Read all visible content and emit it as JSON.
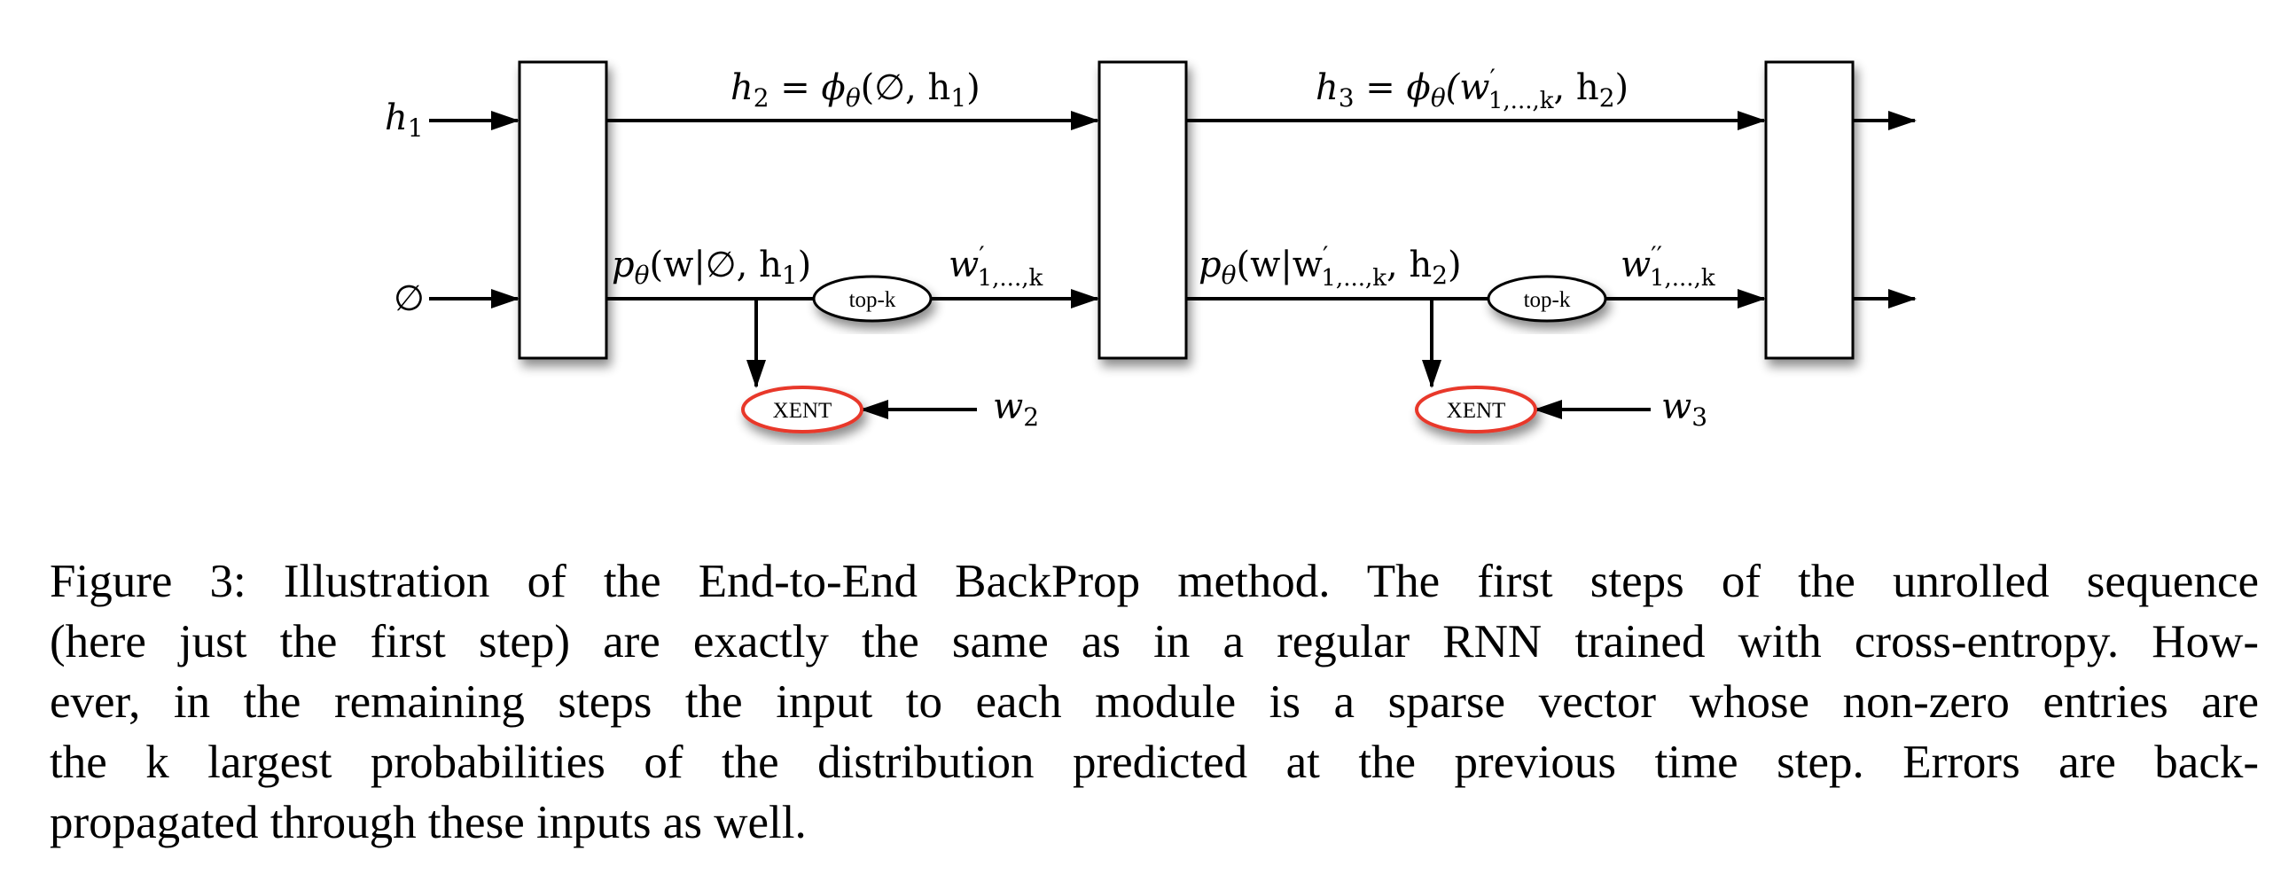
{
  "diagram": {
    "inputs": {
      "h1_base": "h",
      "h1_sub": "1",
      "empty_set": "∅"
    },
    "top_labels": {
      "h2_eq": {
        "lhs": "h",
        "lhs_sub": "2",
        "equals": " = ",
        "phi": "ϕ",
        "theta": "θ",
        "args": "(∅, h",
        "args_sub": "1",
        "close": ")"
      },
      "h3_eq": {
        "lhs": "h",
        "lhs_sub": "3",
        "equals": " = ",
        "phi": "ϕ",
        "theta": "θ",
        "open": "(w",
        "prime": "′",
        "wsub": "1,...,k",
        "comma": ", h",
        "hsub": "2",
        "close": ")"
      }
    },
    "bottom_labels": {
      "p1": {
        "p": "p",
        "theta": "θ",
        "body": "(w|∅, h",
        "hsub": "1",
        "close": ")"
      },
      "w_prime": {
        "w": "w",
        "prime": "′",
        "sub": "1,...,k"
      },
      "p2": {
        "p": "p",
        "theta": "θ",
        "body": "(w|w",
        "prime": "′",
        "wsub": "1,...,k",
        "comma": ", h",
        "hsub": "2",
        "close": ")"
      },
      "w_dprime": {
        "w": "w",
        "prime": "′′",
        "sub": "1,...,k"
      }
    },
    "nodes": {
      "topk_1": "top-k",
      "topk_2": "top-k",
      "xent_1": "XENT",
      "xent_2": "XENT"
    },
    "targets": {
      "w2": {
        "w": "w",
        "sub": "2"
      },
      "w3": {
        "w": "w",
        "sub": "3"
      }
    },
    "colors": {
      "stroke": "#000000",
      "xent_border": "#e8372c"
    }
  },
  "caption": {
    "lines": [
      "Figure 3: Illustration of the End-to-End BackProp method. The first steps of the unrolled sequence",
      "(here just the first step) are exactly the same as in a regular RNN trained with cross-entropy. How-",
      "ever, in the remaining steps the input to each module is a sparse vector whose non-zero entries are",
      "the k largest probabilities of the distribution predicted at the previous time step. Errors are back-",
      "propagated through these inputs as well."
    ]
  }
}
